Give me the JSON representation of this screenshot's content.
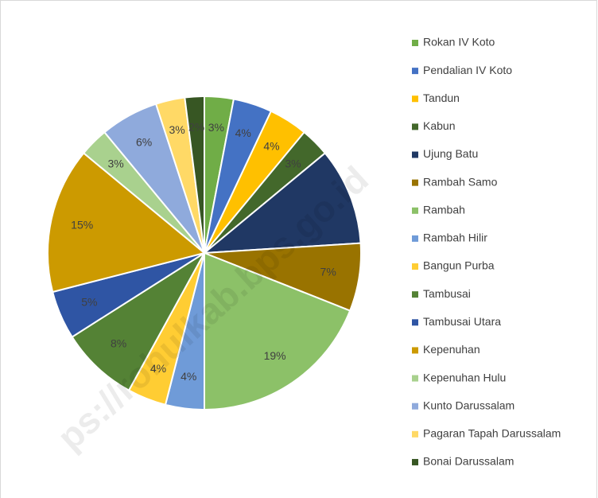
{
  "chart_data": {
    "type": "pie",
    "categories": [
      "Rokan IV Koto",
      "Pendalian IV Koto",
      "Tandun",
      "Kabun",
      "Ujung Batu",
      "Rambah Samo",
      "Rambah",
      "Rambah Hilir",
      "Bangun Purba",
      "Tambusai",
      "Tambusai Utara",
      "Kepenuhan",
      "Kepenuhan Hulu",
      "Kunto Darussalam",
      "Pagaran Tapah Darussalam",
      "Bonai Darussalam"
    ],
    "values": [
      3,
      4,
      4,
      3,
      10,
      7,
      19,
      4,
      4,
      8,
      5,
      15,
      3,
      6,
      3,
      2
    ],
    "value_labels": [
      "3%",
      "4%",
      "4%",
      "3%",
      null,
      "7%",
      "19%",
      "4%",
      "4%",
      "8%",
      "5%",
      "15%",
      "3%",
      "6%",
      "3%",
      "2%"
    ],
    "colors": [
      "#70ad47",
      "#4472c4",
      "#ffc000",
      "#43682b",
      "#203864",
      "#997300",
      "#8cc168",
      "#6f9bd8",
      "#ffcd33",
      "#548235",
      "#2f55a4",
      "#cc9a00",
      "#a9d18e",
      "#8faadc",
      "#ffd966",
      "#375623"
    ],
    "legend": "right",
    "watermark": "ps://rohulkab.bps.go.id"
  }
}
